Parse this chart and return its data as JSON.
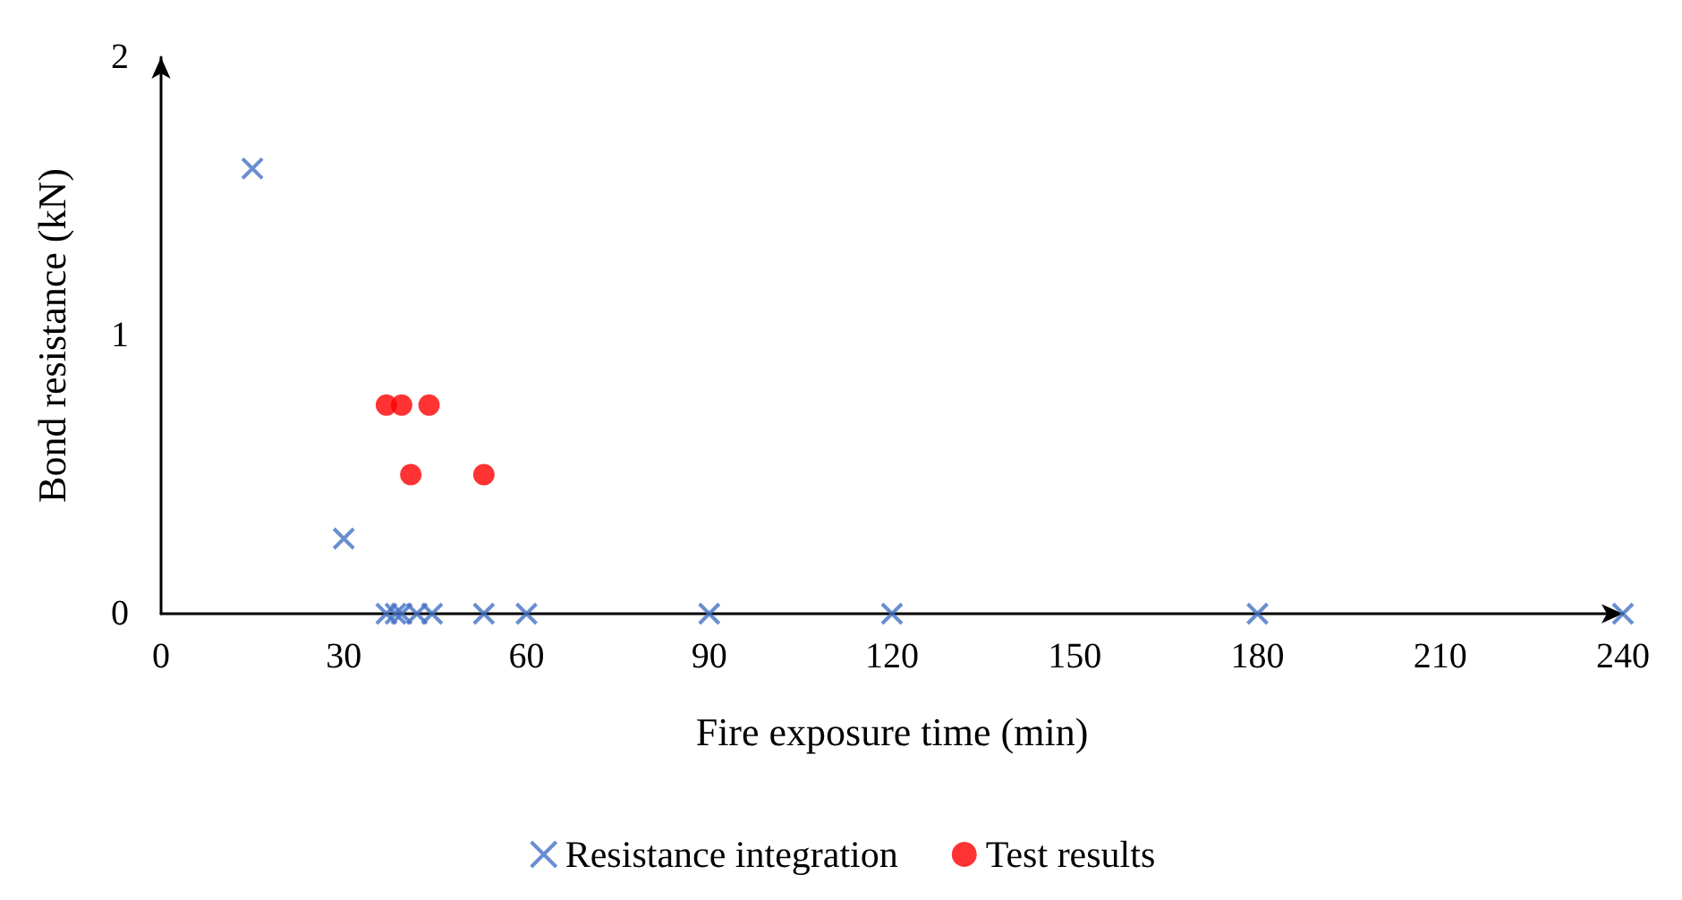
{
  "chart_data": {
    "type": "scatter",
    "xlabel": "Fire exposure time (min)",
    "ylabel": "Bond resistance (kN)",
    "xlim": [
      0,
      240
    ],
    "xticks": [
      0,
      30,
      60,
      90,
      120,
      150,
      180,
      210,
      240
    ],
    "ylim": [
      0,
      2
    ],
    "yticks": [
      0,
      1,
      2
    ],
    "grid": false,
    "legend": "bottom",
    "series": [
      {
        "name": "Resistance integration",
        "color": "#4472c4",
        "marker": "cross",
        "x": [
          15,
          30,
          37,
          38.5,
          39.5,
          42,
          44.5,
          53,
          60,
          90,
          120,
          180,
          240
        ],
        "values": [
          1.6,
          0.27,
          0,
          0,
          0,
          0,
          0,
          0,
          0,
          0,
          0,
          0,
          0
        ]
      },
      {
        "name": "Test results",
        "color": "#ff0000",
        "marker": "circle",
        "x": [
          37,
          39.5,
          44,
          41,
          53
        ],
        "values": [
          0.75,
          0.75,
          0.75,
          0.5,
          0.5
        ]
      }
    ]
  }
}
